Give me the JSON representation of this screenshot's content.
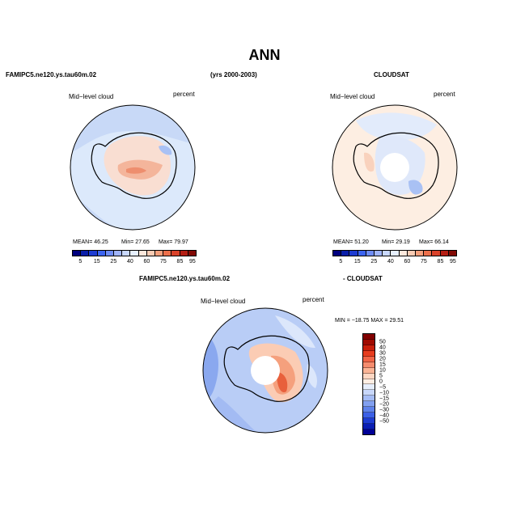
{
  "title": "ANN",
  "top_left": {
    "case_name": "FAMIPC5.ne120.ys.tau60m.02",
    "years": "(yrs 2000-2003)",
    "field": "Mid−level cloud",
    "units": "percent",
    "stats": {
      "mean": "MEAN=  46.25",
      "min": "Min=  27.65",
      "max": "Max=  79.97"
    }
  },
  "top_right": {
    "case_name": "CLOUDSAT",
    "field": "Mid−level cloud",
    "units": "percent",
    "stats": {
      "mean": "MEAN=  51.20",
      "min": "Min=  29.19",
      "max": "Max=  66.14"
    }
  },
  "bottom": {
    "case_name": "FAMIPC5.ne120.ys.tau60m.02",
    "diff_label": "- CLOUDSAT",
    "field": "Mid−level cloud",
    "units": "percent",
    "minmax": "MIN = −18.75  MAX =  29.51"
  },
  "colorbar_top": {
    "colors": [
      "#00007f",
      "#0a1ea8",
      "#1e3cd2",
      "#3c64f0",
      "#6e8cf5",
      "#a0b4fa",
      "#c8d7fc",
      "#e6efff",
      "#fde8dc",
      "#fbccb4",
      "#f5a07d",
      "#ec6f4b",
      "#d9422a",
      "#b41e14",
      "#820a05"
    ],
    "labels": [
      "5",
      "15",
      "25",
      "40",
      "60",
      "75",
      "85",
      "95"
    ]
  },
  "colorbar_diff": {
    "colors": [
      "#820000",
      "#a00a00",
      "#c81e0a",
      "#e63c1e",
      "#f06446",
      "#f58c6e",
      "#fab496",
      "#fdd7c3",
      "#ffeee3",
      "#e6eefc",
      "#c8d7fa",
      "#a5bcf5",
      "#82a0f0",
      "#5f82eb",
      "#3c60e6",
      "#1e3cd2",
      "#0a1eb4",
      "#000096"
    ],
    "labels": [
      "50",
      "40",
      "30",
      "20",
      "15",
      "10",
      "5",
      "0",
      "−5",
      "−10",
      "−15",
      "−20",
      "−30",
      "−40",
      "−50"
    ]
  }
}
